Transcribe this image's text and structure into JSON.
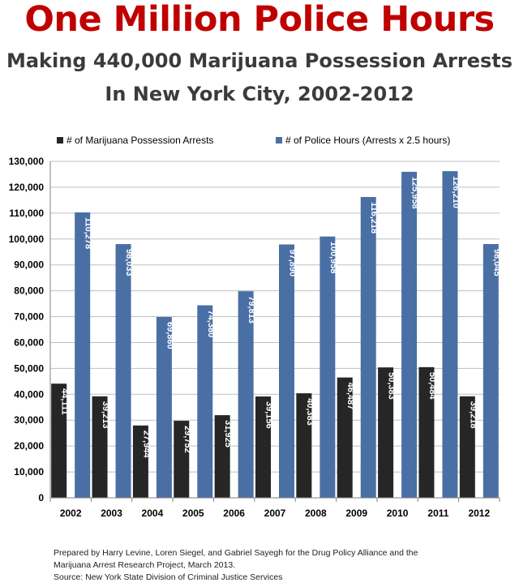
{
  "header": {
    "title": "One Million Police Hours",
    "subtitle_line1": "Making 440,000 Marijuana Possession Arrests",
    "subtitle_line2": "In New York City, 2002-2012"
  },
  "colors": {
    "title": "#c00000",
    "arrests": "#262626",
    "hours": "#4a6fa5",
    "grid": "#bfbfbf",
    "axis_text": "#000000"
  },
  "chart_data": {
    "type": "bar",
    "categories": [
      "2002",
      "2003",
      "2004",
      "2005",
      "2006",
      "2007",
      "2008",
      "2009",
      "2010",
      "2011",
      "2012"
    ],
    "series": [
      {
        "name": "# of Marijuana Possession Arrests",
        "values": [
          44111,
          39213,
          27944,
          29752,
          31925,
          39156,
          40383,
          46487,
          50383,
          50484,
          39218
        ],
        "labels": [
          "44,111",
          "39,213",
          "27,944",
          "29,752",
          "31,925",
          "39,156",
          "40,383",
          "46,487",
          "50,383",
          "50,484",
          "39,218"
        ]
      },
      {
        "name": "# of Police Hours (Arrests x 2.5 hours)",
        "values": [
          110278,
          98033,
          69860,
          74380,
          79813,
          97890,
          100958,
          116218,
          125958,
          126210,
          98045
        ],
        "labels": [
          "110,278",
          "98,033",
          "69,860",
          "74,380",
          "79,813",
          "97,890",
          "100,958",
          "116,218",
          "125,958",
          "126,210",
          "98,045"
        ]
      }
    ],
    "ylim": [
      0,
      130000
    ],
    "yticks": [
      0,
      10000,
      20000,
      30000,
      40000,
      50000,
      60000,
      70000,
      80000,
      90000,
      100000,
      110000,
      120000,
      130000
    ],
    "ytick_labels": [
      "0",
      "10,000",
      "20,000",
      "30,000",
      "40,000",
      "50,000",
      "60,000",
      "70,000",
      "80,000",
      "90,000",
      "100,000",
      "110,000",
      "120,000",
      "130,000"
    ],
    "grid": true,
    "legend_position": "top"
  },
  "footer": {
    "line1": "Prepared by  Harry Levine, Loren Siegel, and Gabriel Sayegh for the Drug Policy Alliance and the",
    "line2": "Marijuana Arrest Research Project, March 2013.",
    "line3": "Source: New York State Division of Criminal Justice Services"
  }
}
